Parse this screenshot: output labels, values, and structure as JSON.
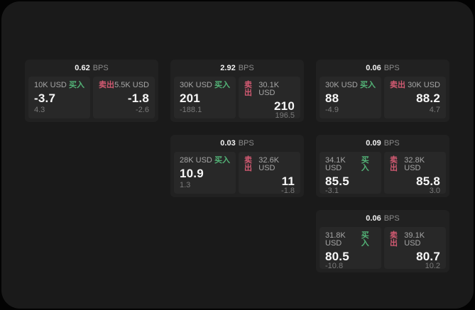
{
  "labels": {
    "bps_unit": "BPS",
    "buy": "买入",
    "sell": "卖出"
  },
  "colors": {
    "buy": "#53b377",
    "sell": "#d25a72",
    "surface": "#1a1a1a",
    "card": "#212121",
    "panel": "#282828"
  },
  "cards": [
    {
      "row": 1,
      "col": 1,
      "bps": "0.62",
      "buy": {
        "amount": "10K USD",
        "value": "-3.7",
        "delta": "4.3"
      },
      "sell": {
        "amount": "5.5K USD",
        "value": "-1.8",
        "delta": "-2.6"
      }
    },
    {
      "row": 1,
      "col": 2,
      "bps": "2.92",
      "buy": {
        "amount": "30K USD",
        "value": "201",
        "delta": "-188.1"
      },
      "sell": {
        "amount": "30.1K USD",
        "value": "210",
        "delta": "196.5"
      }
    },
    {
      "row": 1,
      "col": 3,
      "bps": "0.06",
      "buy": {
        "amount": "30K USD",
        "value": "88",
        "delta": "-4.9"
      },
      "sell": {
        "amount": "30K USD",
        "value": "88.2",
        "delta": "4.7"
      }
    },
    {
      "row": 2,
      "col": 2,
      "bps": "0.03",
      "buy": {
        "amount": "28K USD",
        "value": "10.9",
        "delta": "1.3"
      },
      "sell": {
        "amount": "32.6K USD",
        "value": "11",
        "delta": "-1.8"
      }
    },
    {
      "row": 2,
      "col": 3,
      "bps": "0.09",
      "buy": {
        "amount": "34.1K USD",
        "value": "85.5",
        "delta": "-3.1"
      },
      "sell": {
        "amount": "32.8K USD",
        "value": "85.8",
        "delta": "3.0"
      }
    },
    {
      "row": 3,
      "col": 3,
      "bps": "0.06",
      "buy": {
        "amount": "31.8K USD",
        "value": "80.5",
        "delta": "-10.8"
      },
      "sell": {
        "amount": "39.1K USD",
        "value": "80.7",
        "delta": "10.2"
      }
    }
  ]
}
